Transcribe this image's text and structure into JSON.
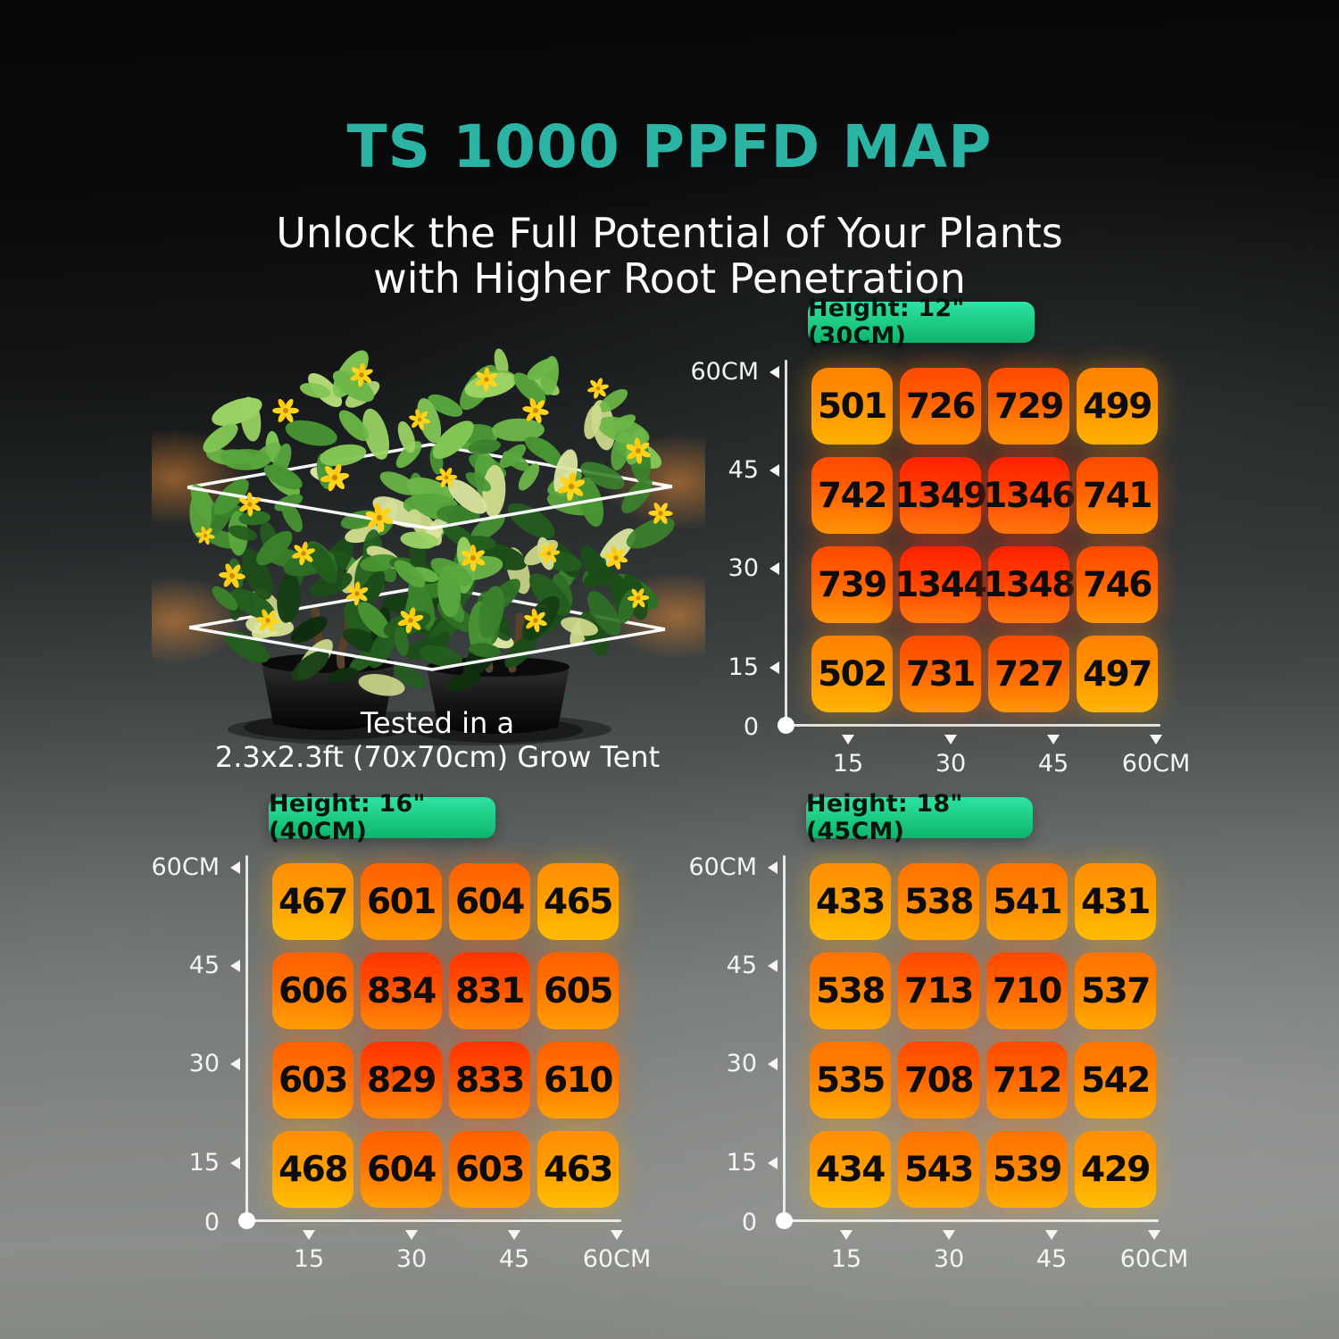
{
  "title": "TS 1000 PPFD MAP",
  "subtitle": {
    "line1": "Unlock the Full Potential of Your Plants",
    "line2": "with Higher Root Penetration"
  },
  "plant": {
    "caption_line1": "Tested in a",
    "caption_line2": "2.3x2.3ft (70x70cm) Grow Tent"
  },
  "colors": {
    "accent_teal": "#2BB3A3",
    "badge_green_top": "#2FE3A4",
    "badge_green_bottom": "#10B46D",
    "tile_text": "#0C0C0C",
    "axis_white": "#F6F7F5",
    "tile_hot_red": "#FF2000",
    "tile_warm_orange": "#FF8F05",
    "tile_low_yellow": "#FFC103"
  },
  "chart_data": [
    {
      "type": "heatmap",
      "title": "Height: 12\"(30CM)",
      "x_ticks": [
        "15",
        "30",
        "45",
        "60CM"
      ],
      "y_ticks": [
        "60CM",
        "45",
        "30",
        "15",
        "0"
      ],
      "x_values_cm": [
        15,
        30,
        45,
        60
      ],
      "y_values_cm": [
        60,
        45,
        30,
        15,
        0
      ],
      "values": [
        [
          501,
          726,
          729,
          499
        ],
        [
          742,
          1349,
          1346,
          741
        ],
        [
          739,
          1344,
          1348,
          746
        ],
        [
          502,
          731,
          727,
          497
        ]
      ]
    },
    {
      "type": "heatmap",
      "title": "Height: 16\"(40CM)",
      "x_ticks": [
        "15",
        "30",
        "45",
        "60CM"
      ],
      "y_ticks": [
        "60CM",
        "45",
        "30",
        "15",
        "0"
      ],
      "x_values_cm": [
        15,
        30,
        45,
        60
      ],
      "y_values_cm": [
        60,
        45,
        30,
        15,
        0
      ],
      "values": [
        [
          467,
          601,
          604,
          465
        ],
        [
          606,
          834,
          831,
          605
        ],
        [
          603,
          829,
          833,
          610
        ],
        [
          468,
          604,
          603,
          463
        ]
      ]
    },
    {
      "type": "heatmap",
      "title": "Height: 18\"(45CM)",
      "x_ticks": [
        "15",
        "30",
        "45",
        "60CM"
      ],
      "y_ticks": [
        "60CM",
        "45",
        "30",
        "15",
        "0"
      ],
      "x_values_cm": [
        15,
        30,
        45,
        60
      ],
      "y_values_cm": [
        60,
        45,
        30,
        15,
        0
      ],
      "values": [
        [
          433,
          538,
          541,
          431
        ],
        [
          538,
          713,
          710,
          537
        ],
        [
          535,
          708,
          712,
          542
        ],
        [
          434,
          543,
          539,
          429
        ]
      ]
    }
  ]
}
